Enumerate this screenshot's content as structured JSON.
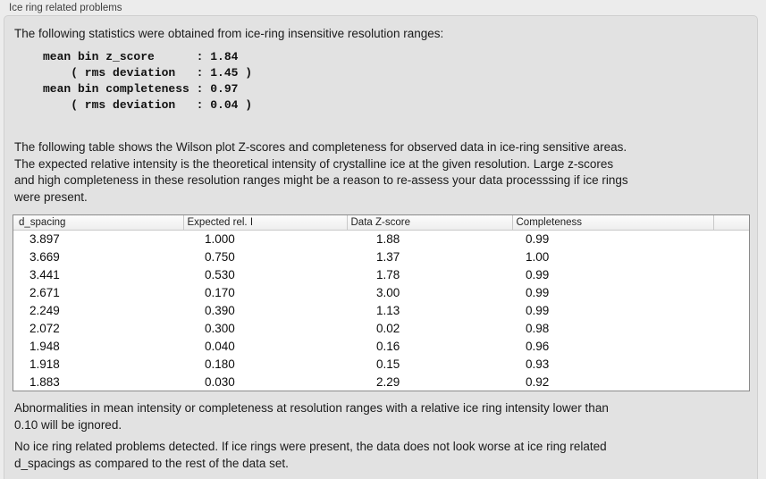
{
  "colors": {
    "window_bg": "#ececec",
    "groupbox_bg": "#e2e2e2",
    "groupbox_border": "#cfcfcf",
    "table_border": "#8a8a8a",
    "header_separator": "#c9c9c9",
    "text": "#1b1b1b"
  },
  "groupbox": {
    "title": "Ice ring related problems"
  },
  "content": {
    "intro": "The following statistics were obtained from ice-ring insensitive resolution ranges:",
    "stats_block": "mean bin z_score      : 1.84\n    ( rms deviation   : 1.45 )\nmean bin completeness : 0.97\n    ( rms deviation   : 0.04 )",
    "table_description": "The following table shows the Wilson plot Z-scores and completeness for observed data in ice-ring sensitive areas.\nThe expected relative intensity is the theoretical intensity of crystalline ice at the given resolution. Large z-scores\nand high completeness in these resolution ranges might be a reason to re-assess your data processsing if ice rings\nwere present.",
    "footnote": "Abnormalities in mean intensity or completeness at resolution ranges with a relative ice ring intensity lower than\n0.10 will be ignored.",
    "conclusion": "No ice ring related problems detected. If ice rings were present, the data does not look worse at ice ring related\nd_spacings as compared to the rest of the data set."
  },
  "table": {
    "columns": [
      "d_spacing",
      "Expected rel. I",
      "Data Z-score",
      "Completeness"
    ],
    "rows": [
      [
        "3.897",
        "1.000",
        "1.88",
        "0.99"
      ],
      [
        "3.669",
        "0.750",
        "1.37",
        "1.00"
      ],
      [
        "3.441",
        "0.530",
        "1.78",
        "0.99"
      ],
      [
        "2.671",
        "0.170",
        "3.00",
        "0.99"
      ],
      [
        "2.249",
        "0.390",
        "1.13",
        "0.99"
      ],
      [
        "2.072",
        "0.300",
        "0.02",
        "0.98"
      ],
      [
        "1.948",
        "0.040",
        "0.16",
        "0.96"
      ],
      [
        "1.918",
        "0.180",
        "0.15",
        "0.93"
      ],
      [
        "1.883",
        "0.030",
        "2.29",
        "0.92"
      ]
    ]
  }
}
